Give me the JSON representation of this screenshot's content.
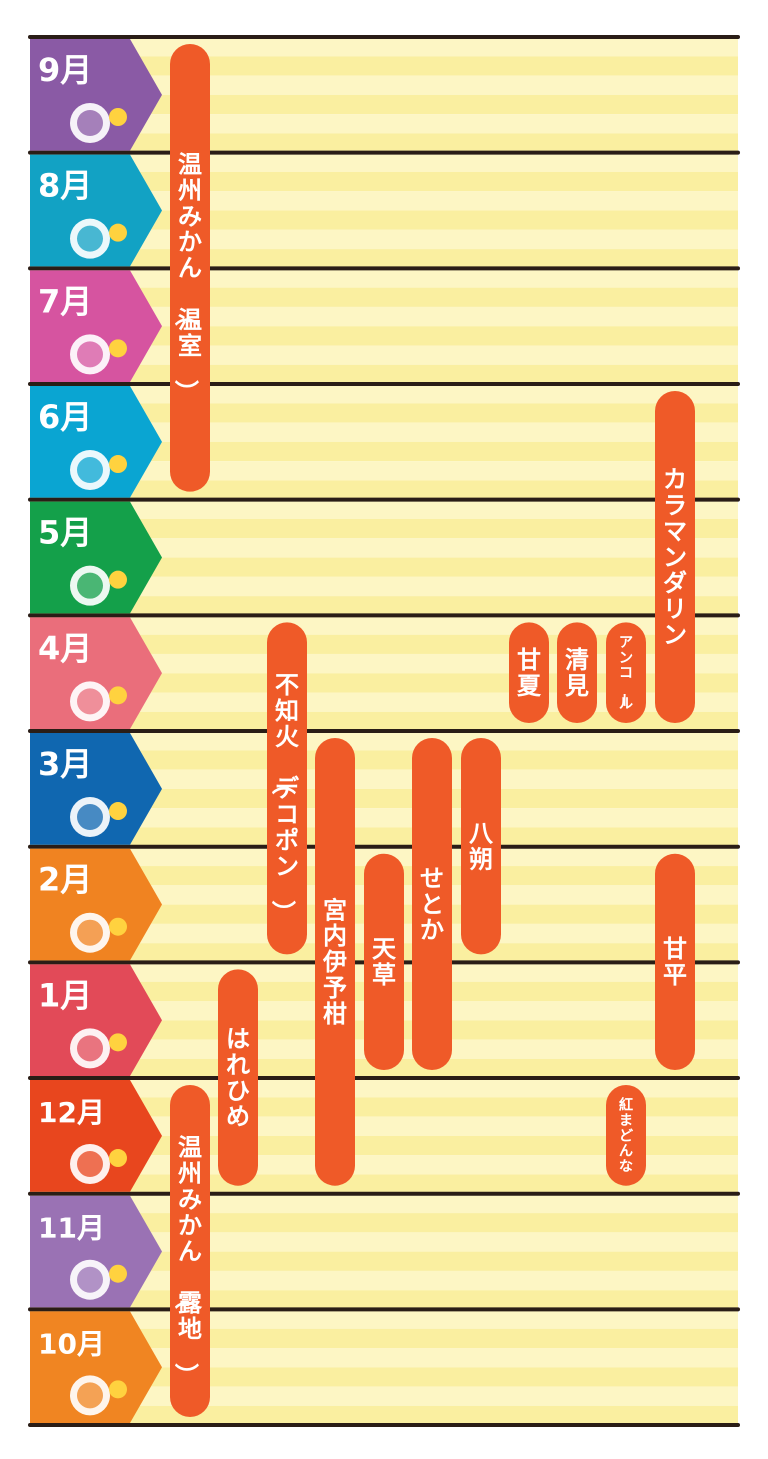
{
  "chart_data": {
    "type": "timeline",
    "months": [
      {
        "label": "9月",
        "color": "#8a5aa5",
        "icon": "moon-viewing-icon"
      },
      {
        "label": "8月",
        "color": "#12a2c4",
        "icon": "watermelon-sunflower-icon"
      },
      {
        "label": "7月",
        "color": "#d654a0",
        "icon": "tanabata-icon"
      },
      {
        "label": "6月",
        "color": "#0aa5d2",
        "icon": "rainbow-hydrangea-icon"
      },
      {
        "label": "5月",
        "color": "#14a04a",
        "icon": "koinobori-icon"
      },
      {
        "label": "4月",
        "color": "#ea6e7b",
        "icon": "sakura-icon"
      },
      {
        "label": "3月",
        "color": "#1067b0",
        "icon": "hinamatsuri-icon"
      },
      {
        "label": "2月",
        "color": "#f08321",
        "icon": "oni-icon"
      },
      {
        "label": "1月",
        "color": "#e24a58",
        "icon": "daruma-icon"
      },
      {
        "label": "12月",
        "color": "#e8461e",
        "icon": "christmas-icon"
      },
      {
        "label": "11月",
        "color": "#9a72b4",
        "icon": "autumn-leaf-icon"
      },
      {
        "label": "10月",
        "color": "#f08522",
        "icon": "halloween-icon"
      }
    ],
    "varieties": [
      {
        "name": "温州みかん（温室）",
        "start_month": "9月",
        "end_month": "6月",
        "column": 0
      },
      {
        "name": "温州みかん（露地）",
        "start_month": "12月",
        "end_month": "10月",
        "column": 0
      },
      {
        "name": "はれひめ",
        "start_month": "1月",
        "end_month": "12月",
        "column": 1
      },
      {
        "name": "不知火（デコポン）",
        "start_month": "4月",
        "end_month": "2月",
        "column": 2
      },
      {
        "name": "宮内伊予柑",
        "start_month": "3月",
        "end_month": "12月",
        "column": 3
      },
      {
        "name": "天草",
        "start_month": "2月",
        "end_month": "1月",
        "column": 4
      },
      {
        "name": "せとか",
        "start_month": "3月",
        "end_month": "1月",
        "column": 5
      },
      {
        "name": "八朔",
        "start_month": "3月",
        "end_month": "2月",
        "column": 6
      },
      {
        "name": "甘夏",
        "start_month": "4月",
        "end_month": "4月",
        "column": 7
      },
      {
        "name": "清見",
        "start_month": "4月",
        "end_month": "4月",
        "column": 8
      },
      {
        "name": "アンコール",
        "start_month": "4月",
        "end_month": "4月",
        "column": 9
      },
      {
        "name": "カラマンダリン",
        "start_month": "6月",
        "end_month": "4月",
        "column": 10
      },
      {
        "name": "甘平",
        "start_month": "2月",
        "end_month": "1月",
        "column": 10
      },
      {
        "name": "紅まどんな",
        "start_month": "12月",
        "end_month": "12月",
        "column": 9
      }
    ]
  }
}
